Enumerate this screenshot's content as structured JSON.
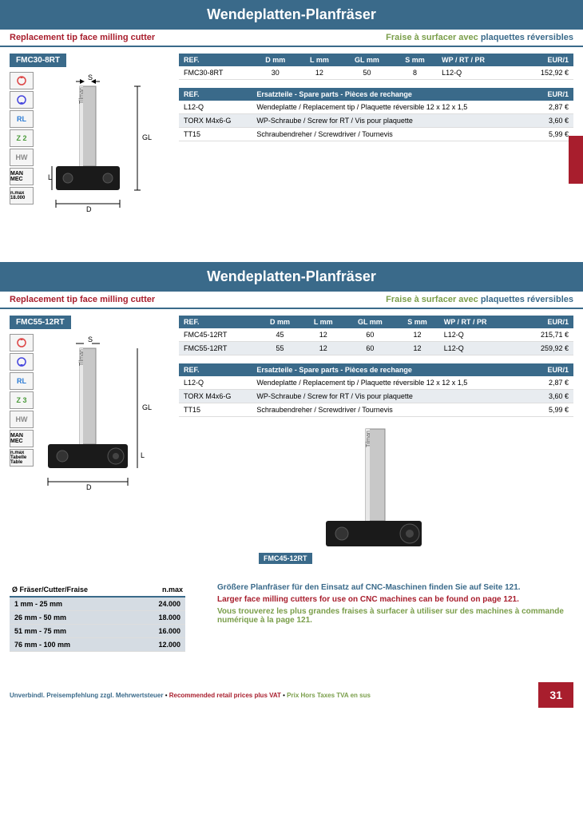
{
  "colors": {
    "header_bg": "#3a6a8a",
    "accent_red": "#a81e2d",
    "accent_green": "#7a9e4a",
    "row_alt": "#e8ecf0",
    "nmax_cell": "#d5dce3"
  },
  "section1": {
    "title": "Wendeplatten-Planfräser",
    "subtitle_en": "Replacement tip face milling cutter",
    "subtitle_fr": "Fraise à surfacer avec",
    "subtitle_fr2": "plaquettes réversibles",
    "product_ref": "FMC30-8RT",
    "specs": [
      "RL",
      "Z 2",
      "HW",
      "MAN\nMEC",
      "n.max\n18.000"
    ],
    "main_table": {
      "columns": [
        "REF.",
        "D mm",
        "L mm",
        "GL mm",
        "S mm",
        "WP / RT / PR",
        "EUR/1"
      ],
      "rows": [
        [
          "FMC30-8RT",
          "30",
          "12",
          "50",
          "8",
          "L12-Q",
          "152,92 €"
        ]
      ]
    },
    "spare_table": {
      "header_ref": "REF.",
      "header_desc": "Ersatzteile - Spare parts - Pièces de rechange",
      "header_price": "EUR/1",
      "rows": [
        [
          "L12-Q",
          "Wendeplatte / Replacement tip / Plaquette réversible 12 x 12 x 1,5",
          "2,87 €"
        ],
        [
          "TORX M4x6-G",
          "WP-Schraube / Screw for RT / Vis pour plaquette",
          "3,60 €"
        ],
        [
          "TT15",
          "Schraubendreher / Screwdriver / Tournevis",
          "5,99 €"
        ]
      ]
    }
  },
  "section2": {
    "title": "Wendeplatten-Planfräser",
    "subtitle_en": "Replacement tip face milling cutter",
    "subtitle_fr": "Fraise à surfacer avec",
    "subtitle_fr2": "plaquettes réversibles",
    "product_ref": "FMC55-12RT",
    "specs": [
      "RL",
      "Z 3",
      "HW",
      "MAN\nMEC",
      "n.max\nTabelle\nTable"
    ],
    "main_table": {
      "columns": [
        "REF.",
        "D mm",
        "L mm",
        "GL mm",
        "S mm",
        "WP / RT / PR",
        "EUR/1"
      ],
      "rows": [
        [
          "FMC45-12RT",
          "45",
          "12",
          "60",
          "12",
          "L12-Q",
          "215,71 €"
        ],
        [
          "FMC55-12RT",
          "55",
          "12",
          "60",
          "12",
          "L12-Q",
          "259,92 €"
        ]
      ]
    },
    "spare_table": {
      "header_ref": "REF.",
      "header_desc": "Ersatzteile - Spare parts - Pièces de rechange",
      "header_price": "EUR/1",
      "rows": [
        [
          "L12-Q",
          "Wendeplatte / Replacement tip / Plaquette réversible 12 x 12 x 1,5",
          "2,87 €"
        ],
        [
          "TORX M4x6-G",
          "WP-Schraube / Screw for RT / Vis pour plaquette",
          "3,60 €"
        ],
        [
          "TT15",
          "Schraubendreher / Screwdriver / Tournevis",
          "5,99 €"
        ]
      ]
    },
    "second_tool_ref": "FMC45-12RT"
  },
  "nmax_table": {
    "columns": [
      "Ø Fräser/Cutter/Fraise",
      "n.max"
    ],
    "rows": [
      [
        "1 mm - 25 mm",
        "24.000"
      ],
      [
        "26 mm - 50 mm",
        "18.000"
      ],
      [
        "51 mm - 75 mm",
        "16.000"
      ],
      [
        "76 mm - 100 mm",
        "12.000"
      ]
    ]
  },
  "notes": {
    "de": "Größere Planfräser für den Einsatz auf CNC-Maschinen finden Sie auf Seite 121.",
    "en": "Larger face milling cutters for use on CNC machines can be found on page 121.",
    "fr": "Vous trouverez les plus grandes fraises à surfacer à utiliser sur des machines à commande numérique à la page 121."
  },
  "footer": {
    "de": "Unverbindl. Preisempfehlung zzgl. Mehrwertsteuer",
    "en": "Recommended retail prices plus VAT",
    "fr": "Prix Hors Taxes TVA en sus",
    "page": "31"
  }
}
